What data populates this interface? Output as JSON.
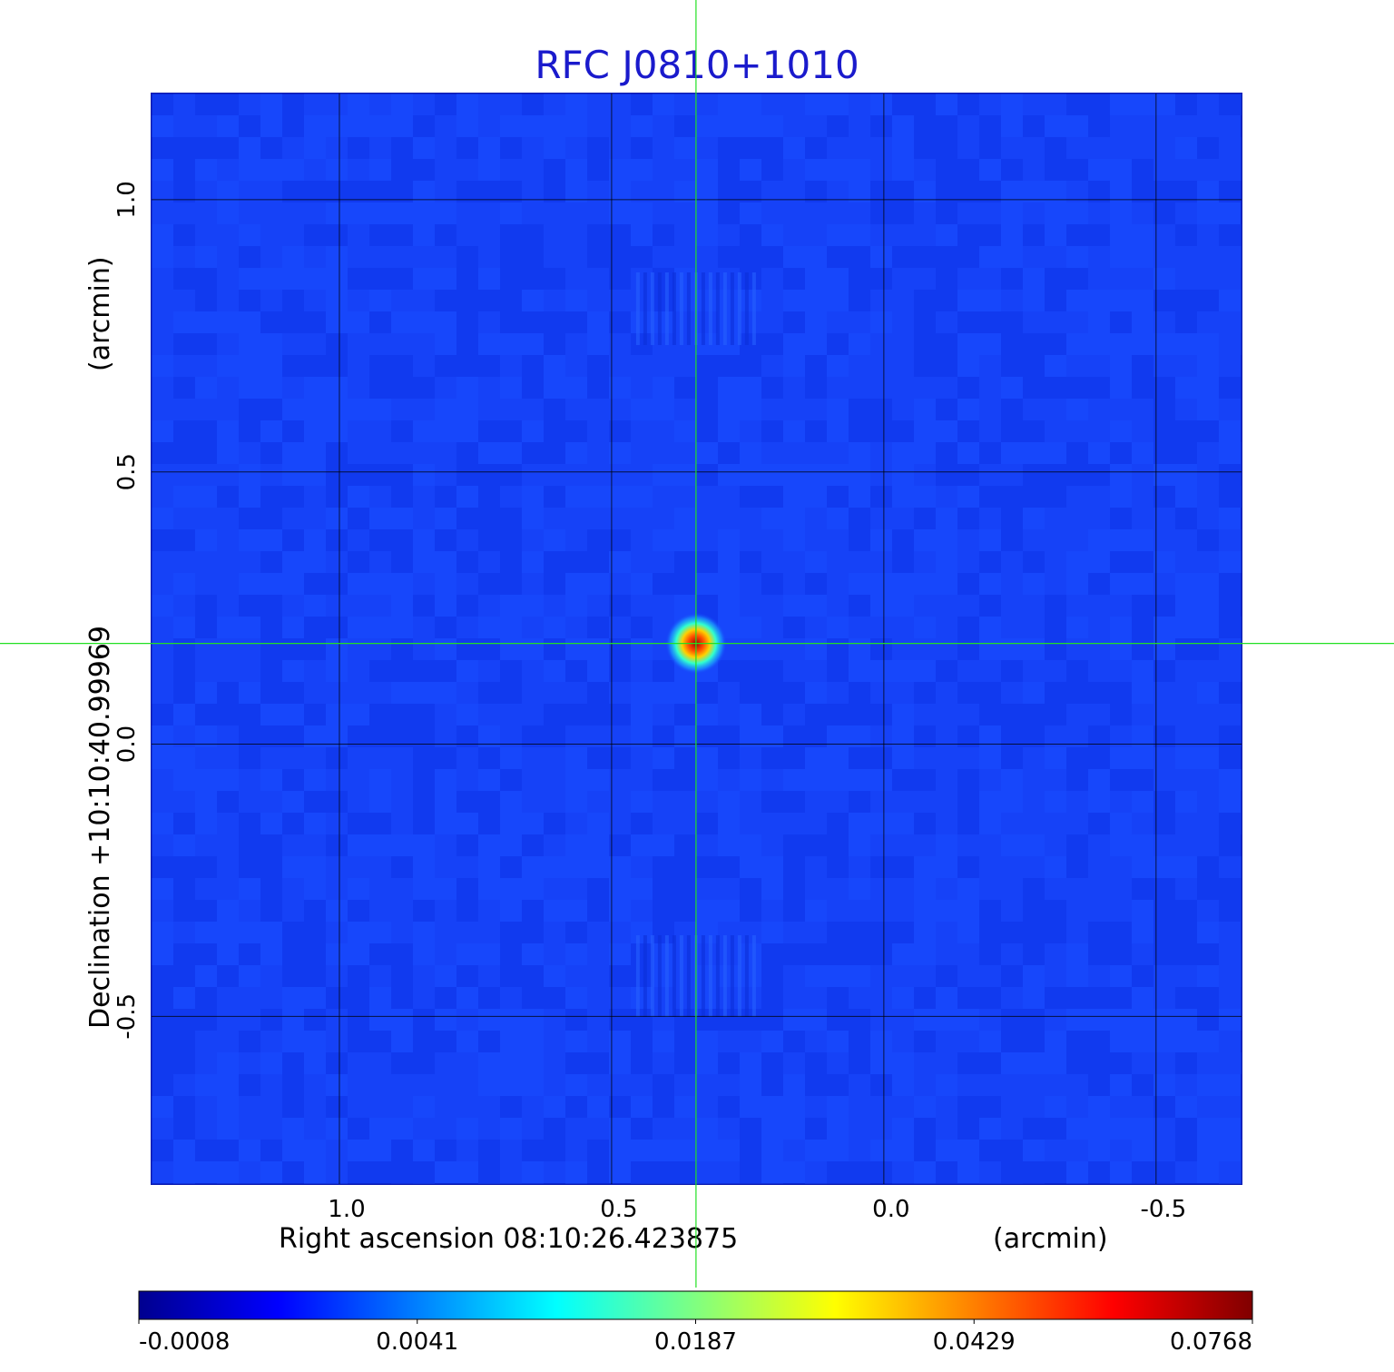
{
  "chart_data": {
    "type": "heatmap",
    "title": "RFC J0810+1010",
    "xlabel": "Right ascension  08:10:26.423875",
    "xunit": "(arcmin)",
    "ylabel": "Declination  +10:10:40.99969",
    "yunit": "(arcmin)",
    "x_ticks": [
      {
        "value": 1.0,
        "label": "1.0"
      },
      {
        "value": 0.5,
        "label": "0.5"
      },
      {
        "value": 0.0,
        "label": "0.0"
      },
      {
        "value": -0.5,
        "label": "-0.5"
      }
    ],
    "y_ticks": [
      {
        "value": 1.0,
        "label": "1.0"
      },
      {
        "value": 0.5,
        "label": "0.5"
      },
      {
        "value": 0.0,
        "label": "0.0"
      },
      {
        "value": -0.5,
        "label": "-0.5"
      }
    ],
    "xlim": [
      1.345,
      -0.657
    ],
    "ylim": [
      -0.808,
      1.195
    ],
    "grid": true,
    "crosshair": {
      "x": 0.345,
      "y": 0.185
    },
    "colorbar": {
      "ticks": [
        "-0.0008",
        "0.0041",
        "0.0187",
        "0.0429",
        "0.0768"
      ],
      "colormap": "jet"
    },
    "peak": {
      "x": 0.345,
      "y": 0.185,
      "value": 0.0768
    },
    "colors": {
      "title": "#1a1acc",
      "background_field": "#1540f5",
      "crosshair": "#22e022",
      "grid": "#000000"
    }
  }
}
